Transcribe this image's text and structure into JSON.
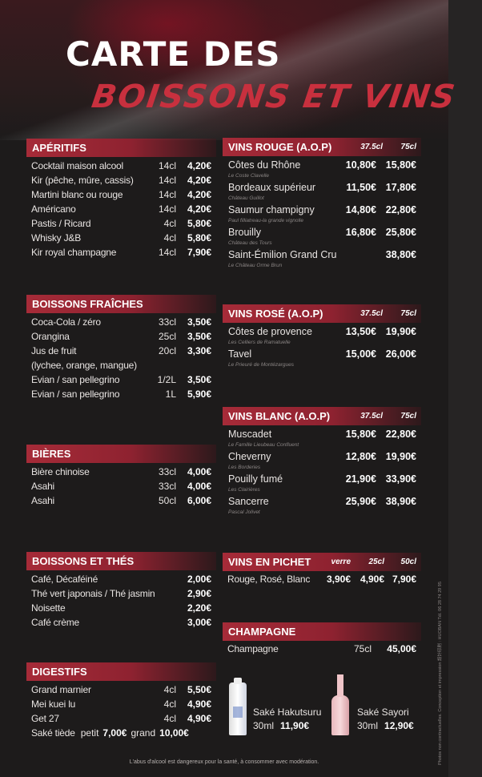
{
  "title": {
    "line1": "CARTE DES",
    "line2": "BOISSONS ET VINS"
  },
  "colors": {
    "accent": "#a62b38",
    "background": "#1d1b1b",
    "script_title": "#c8303e"
  },
  "aperitifs": {
    "title": "APÉRITIFS",
    "items": [
      {
        "name": "Cocktail maison alcool",
        "vol": "14cl",
        "price": "4,20€"
      },
      {
        "name": "Kir (pêche, mûre, cassis)",
        "vol": "14cl",
        "price": "4,20€"
      },
      {
        "name": "Martini blanc ou rouge",
        "vol": "14cl",
        "price": "4,20€"
      },
      {
        "name": "Américano",
        "vol": "14cl",
        "price": "4,20€"
      },
      {
        "name": "Pastis / Ricard",
        "vol": "4cl",
        "price": "5,80€"
      },
      {
        "name": "Whisky J&B",
        "vol": "4cl",
        "price": "5,80€"
      },
      {
        "name": "Kir royal champagne",
        "vol": "14cl",
        "price": "7,90€"
      }
    ]
  },
  "fraiches": {
    "title": "BOISSONS FRAÎCHES",
    "items": [
      {
        "name": "Coca-Cola / zéro",
        "vol": "33cl",
        "price": "3,50€"
      },
      {
        "name": "Orangina",
        "vol": "25cl",
        "price": "3,50€"
      },
      {
        "name": "Jus de fruit",
        "vol": "20cl",
        "price": "3,30€"
      },
      {
        "name": "(lychee, orange, mangue)",
        "vol": "",
        "price": ""
      },
      {
        "name": "Evian / san pellegrino",
        "vol": "1/2L",
        "price": "3,50€"
      },
      {
        "name": "Evian / san pellegrino",
        "vol": "1L",
        "price": "5,90€"
      }
    ]
  },
  "bieres": {
    "title": "BIÈRES",
    "items": [
      {
        "name": "Bière chinoise",
        "vol": "33cl",
        "price": "4,00€"
      },
      {
        "name": "Asahi",
        "vol": "33cl",
        "price": "4,00€"
      },
      {
        "name": "Asahi",
        "vol": "50cl",
        "price": "6,00€"
      }
    ]
  },
  "thes": {
    "title": "BOISSONS ET THÉS",
    "items": [
      {
        "name": "Café, Décaféiné",
        "vol": "",
        "price": "2,00€"
      },
      {
        "name": "Thé vert japonais / Thé jasmin",
        "vol": "",
        "price": "2,90€"
      },
      {
        "name": "Noisette",
        "vol": "",
        "price": "2,20€"
      },
      {
        "name": "Café crème",
        "vol": "",
        "price": "3,00€"
      }
    ]
  },
  "digestifs": {
    "title": "DIGESTIFS",
    "items": [
      {
        "name": "Grand marnier",
        "vol": "4cl",
        "price": "5,50€"
      },
      {
        "name": "Mei kuei lu",
        "vol": "4cl",
        "price": "4,90€"
      },
      {
        "name": "Get 27",
        "vol": "4cl",
        "price": "4,90€"
      }
    ],
    "sake_tiede": {
      "name": "Saké tiède",
      "small_label": "petit",
      "small_price": "7,00€",
      "large_label": "grand",
      "large_price": "10,00€"
    }
  },
  "vins_rouge": {
    "title": "VINS ROUGE (A.O.P)",
    "cols": [
      "37.5cl",
      "75cl"
    ],
    "items": [
      {
        "name": "Côtes du Rhône",
        "sub": "Le Coste Clavelle",
        "p1": "10,80€",
        "p2": "15,80€"
      },
      {
        "name": "Bordeaux supérieur",
        "sub": "Château Guillot",
        "p1": "11,50€",
        "p2": "17,80€"
      },
      {
        "name": "Saumur champigny",
        "sub": "Paul filliatreau-la grande vignolle",
        "p1": "14,80€",
        "p2": "22,80€"
      },
      {
        "name": "Brouilly",
        "sub": "Château des Tours",
        "p1": "16,80€",
        "p2": "25,80€"
      },
      {
        "name": "Saint-Émilion Grand Cru",
        "sub": "Le Château Orme Brun",
        "p1": "",
        "p2": "38,80€"
      }
    ]
  },
  "vins_rose": {
    "title": "VINS ROSÉ (A.O.P)",
    "cols": [
      "37.5cl",
      "75cl"
    ],
    "items": [
      {
        "name": "Côtes de provence",
        "sub": "Les Celliers de Ramatuelle",
        "p1": "13,50€",
        "p2": "19,90€"
      },
      {
        "name": "Tavel",
        "sub": "Le Prieuré de Montézargues",
        "p1": "15,00€",
        "p2": "26,00€"
      }
    ]
  },
  "vins_blanc": {
    "title": "VINS BLANC (A.O.P)",
    "cols": [
      "37.5cl",
      "75cl"
    ],
    "items": [
      {
        "name": "Muscadet",
        "sub": "Le Famille Lieubeau Confluent",
        "p1": "15,80€",
        "p2": "22,80€"
      },
      {
        "name": "Cheverny",
        "sub": "Les Borderies",
        "p1": "12,80€",
        "p2": "19,90€"
      },
      {
        "name": "Pouilly fumé",
        "sub": "Les Clairières",
        "p1": "21,90€",
        "p2": "33,90€"
      },
      {
        "name": "Sancerre",
        "sub": "Pascal Jolivet",
        "p1": "25,90€",
        "p2": "38,90€"
      }
    ]
  },
  "pichet": {
    "title": "VINS EN PICHET",
    "cols": [
      "verre",
      "25cl",
      "50cl"
    ],
    "name": "Rouge, Rosé, Blanc",
    "prices": [
      "3,90€",
      "4,90€",
      "7,90€"
    ]
  },
  "champagne": {
    "title": "CHAMPAGNE",
    "name": "Champagne",
    "vol": "75cl",
    "price": "45,00€"
  },
  "sakes": [
    {
      "name": "Saké Hakutsuru",
      "vol": "30ml",
      "price": "11,90€"
    },
    {
      "name": "Saké Sayori",
      "vol": "30ml",
      "price": "12,90€"
    }
  ],
  "footer": "L'abus d'alcool est dangereux pour la santé, à consommer avec modération.",
  "credits": "Photos non contractuelles. Conception et impression 設計印刷 : HUOBAN   Tél. 06 28 74 29 95"
}
